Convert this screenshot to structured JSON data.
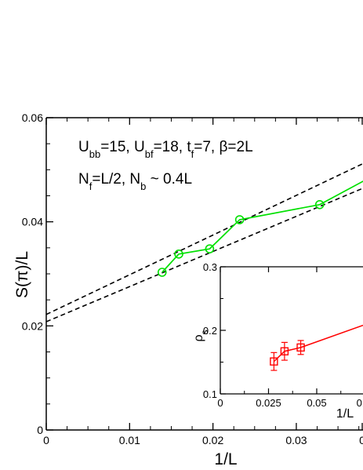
{
  "chart_data": [
    {
      "type": "line",
      "xlabel": "1/L",
      "ylabel": "S(π)/L",
      "xlim": [
        0,
        0.038
      ],
      "ylim": [
        0,
        0.06
      ],
      "x_ticks": [
        "0",
        "0.01",
        "0.02",
        "0.03",
        "0"
      ],
      "y_ticks": [
        "0",
        "0.02",
        "0.04",
        "0.06"
      ],
      "annotations": {
        "line1": {
          "parts": [
            {
              "t": "U"
            },
            {
              "t": "bb",
              "sub": true
            },
            {
              "t": "=15, U"
            },
            {
              "t": "bf",
              "sub": true
            },
            {
              "t": "=18, t"
            },
            {
              "t": "f",
              "sub": true
            },
            {
              "t": "=7, β=2L"
            }
          ]
        },
        "line2": {
          "parts": [
            {
              "t": "N"
            },
            {
              "t": "f",
              "sub": true
            },
            {
              "t": "=L/2, N"
            },
            {
              "t": "b",
              "sub": true
            },
            {
              "t": " ~ 0.4L"
            }
          ]
        }
      },
      "series": [
        {
          "x": [
            0.0139,
            0.0159,
            0.0196,
            0.0232,
            0.0328,
            0.04
          ],
          "y": [
            0.0303,
            0.0338,
            0.0348,
            0.0404,
            0.0433,
            0.0495
          ],
          "color": "#00e000",
          "marker": "circle"
        }
      ],
      "fit_lines": [
        {
          "x": [
            0,
            0.04
          ],
          "y": [
            0.0222,
            0.0527
          ],
          "style": "dashed",
          "color": "#000000"
        },
        {
          "x": [
            0,
            0.04
          ],
          "y": [
            0.0208,
            0.0478
          ],
          "style": "dashed",
          "color": "#000000"
        }
      ]
    },
    {
      "type": "line",
      "inset": true,
      "xlabel": "1/L",
      "ylabel": "ρs",
      "ylabel_parts": [
        {
          "t": "ρ"
        },
        {
          "t": "s",
          "sub": true
        }
      ],
      "xlim": [
        0,
        0.074
      ],
      "ylim": [
        0.1,
        0.3
      ],
      "x_ticks": [
        "0",
        "0.025",
        "0.05",
        "0."
      ],
      "y_ticks": [
        "0.1",
        "0.2",
        "0.3"
      ],
      "series": [
        {
          "x": [
            0.0278,
            0.0333,
            0.0417,
            0.074
          ],
          "y": [
            0.151,
            0.167,
            0.173,
            0.208
          ],
          "err": [
            0.014,
            0.014,
            0.011,
            0
          ],
          "color": "#ff0000",
          "marker": "square"
        }
      ]
    }
  ]
}
